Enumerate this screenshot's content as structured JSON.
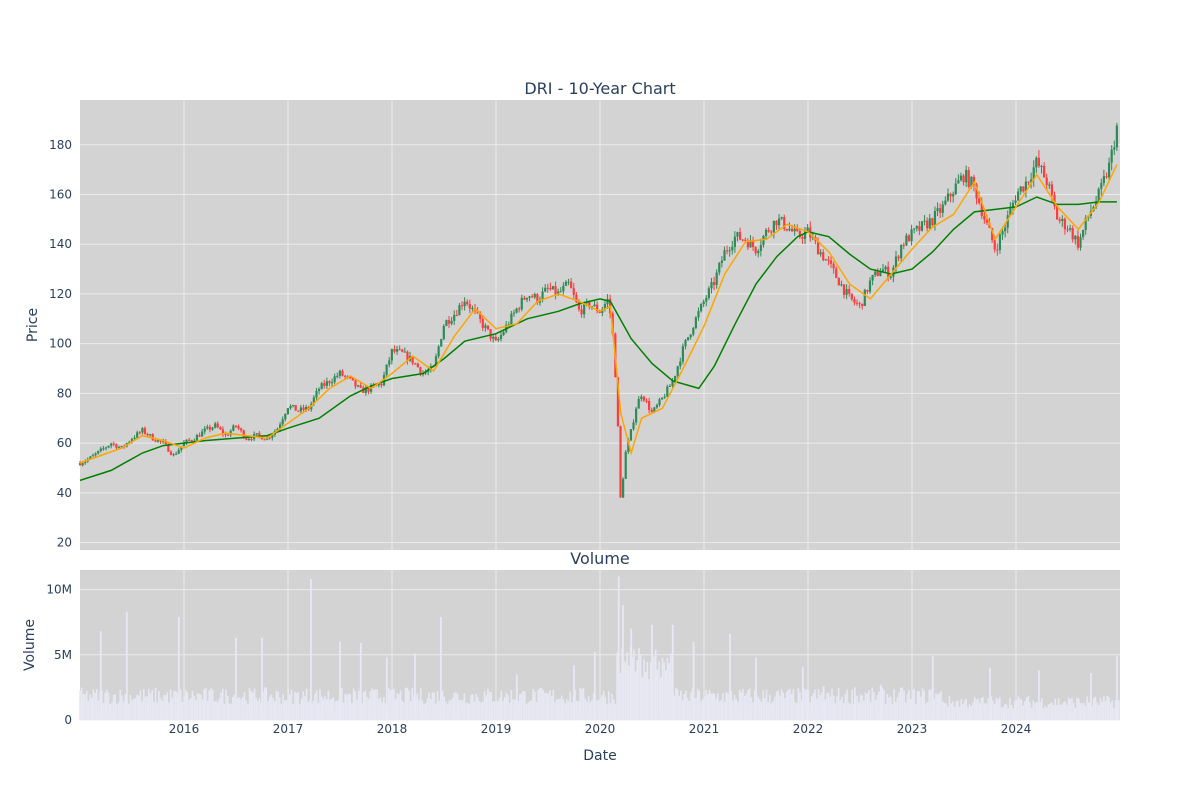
{
  "chart_data": [
    {
      "type": "candlestick",
      "title": "DRI - 10-Year Chart",
      "ylabel": "Price",
      "xlabel": "",
      "ylim": [
        17,
        198
      ],
      "xlim": [
        2015.0,
        2025.0
      ],
      "yticks": [
        "20",
        "40",
        "60",
        "80",
        "100",
        "120",
        "140",
        "160",
        "180"
      ],
      "grid": true,
      "colors": {
        "up": "#2e8b57",
        "down": "#ff3b3b",
        "plot_bg": "#d3d3d3",
        "ma_short": "#ffa500",
        "ma_long": "#008000"
      },
      "close_series": [
        [
          2015.0,
          52
        ],
        [
          2015.1,
          54
        ],
        [
          2015.2,
          57
        ],
        [
          2015.3,
          60
        ],
        [
          2015.4,
          58
        ],
        [
          2015.5,
          62
        ],
        [
          2015.6,
          65
        ],
        [
          2015.7,
          62
        ],
        [
          2015.8,
          60
        ],
        [
          2015.9,
          55
        ],
        [
          2016.0,
          60
        ],
        [
          2016.1,
          62
        ],
        [
          2016.2,
          65
        ],
        [
          2016.3,
          67
        ],
        [
          2016.4,
          63
        ],
        [
          2016.5,
          67
        ],
        [
          2016.6,
          62
        ],
        [
          2016.7,
          63
        ],
        [
          2016.8,
          62
        ],
        [
          2016.9,
          66
        ],
        [
          2017.0,
          75
        ],
        [
          2017.1,
          73
        ],
        [
          2017.2,
          74
        ],
        [
          2017.3,
          82
        ],
        [
          2017.4,
          85
        ],
        [
          2017.5,
          88
        ],
        [
          2017.6,
          85
        ],
        [
          2017.7,
          81
        ],
        [
          2017.8,
          82
        ],
        [
          2017.9,
          84
        ],
        [
          2018.0,
          97
        ],
        [
          2018.1,
          96
        ],
        [
          2018.2,
          93
        ],
        [
          2018.3,
          88
        ],
        [
          2018.4,
          90
        ],
        [
          2018.5,
          108
        ],
        [
          2018.6,
          112
        ],
        [
          2018.7,
          118
        ],
        [
          2018.8,
          112
        ],
        [
          2018.9,
          106
        ],
        [
          2019.0,
          100
        ],
        [
          2019.1,
          107
        ],
        [
          2019.2,
          114
        ],
        [
          2019.3,
          120
        ],
        [
          2019.4,
          118
        ],
        [
          2019.5,
          122
        ],
        [
          2019.6,
          120
        ],
        [
          2019.7,
          124
        ],
        [
          2019.8,
          113
        ],
        [
          2019.9,
          116
        ],
        [
          2020.0,
          113
        ],
        [
          2020.08,
          118
        ],
        [
          2020.12,
          105
        ],
        [
          2020.16,
          80
        ],
        [
          2020.2,
          35
        ],
        [
          2020.24,
          55
        ],
        [
          2020.3,
          65
        ],
        [
          2020.35,
          75
        ],
        [
          2020.4,
          80
        ],
        [
          2020.5,
          72
        ],
        [
          2020.6,
          78
        ],
        [
          2020.7,
          85
        ],
        [
          2020.8,
          98
        ],
        [
          2020.9,
          108
        ],
        [
          2021.0,
          117
        ],
        [
          2021.1,
          125
        ],
        [
          2021.2,
          137
        ],
        [
          2021.3,
          143
        ],
        [
          2021.4,
          142
        ],
        [
          2021.5,
          138
        ],
        [
          2021.6,
          145
        ],
        [
          2021.7,
          150
        ],
        [
          2021.8,
          147
        ],
        [
          2021.9,
          143
        ],
        [
          2022.0,
          145
        ],
        [
          2022.1,
          138
        ],
        [
          2022.2,
          132
        ],
        [
          2022.3,
          125
        ],
        [
          2022.4,
          118
        ],
        [
          2022.5,
          115
        ],
        [
          2022.6,
          125
        ],
        [
          2022.7,
          130
        ],
        [
          2022.8,
          128
        ],
        [
          2022.9,
          140
        ],
        [
          2023.0,
          144
        ],
        [
          2023.1,
          147
        ],
        [
          2023.2,
          150
        ],
        [
          2023.3,
          155
        ],
        [
          2023.4,
          162
        ],
        [
          2023.5,
          168
        ],
        [
          2023.6,
          163
        ],
        [
          2023.7,
          150
        ],
        [
          2023.8,
          138
        ],
        [
          2023.9,
          148
        ],
        [
          2024.0,
          160
        ],
        [
          2024.1,
          165
        ],
        [
          2024.2,
          173
        ],
        [
          2024.3,
          165
        ],
        [
          2024.4,
          150
        ],
        [
          2024.5,
          147
        ],
        [
          2024.6,
          140
        ],
        [
          2024.7,
          152
        ],
        [
          2024.8,
          160
        ],
        [
          2024.9,
          172
        ],
        [
          2024.97,
          187
        ]
      ],
      "ma_short": [
        [
          2015.0,
          52
        ],
        [
          2015.2,
          55
        ],
        [
          2015.4,
          58
        ],
        [
          2015.6,
          63
        ],
        [
          2015.8,
          61
        ],
        [
          2016.0,
          58
        ],
        [
          2016.2,
          62
        ],
        [
          2016.4,
          64
        ],
        [
          2016.6,
          63
        ],
        [
          2016.8,
          62
        ],
        [
          2017.0,
          68
        ],
        [
          2017.2,
          74
        ],
        [
          2017.4,
          82
        ],
        [
          2017.6,
          87
        ],
        [
          2017.8,
          82
        ],
        [
          2018.0,
          88
        ],
        [
          2018.2,
          95
        ],
        [
          2018.4,
          89
        ],
        [
          2018.6,
          103
        ],
        [
          2018.8,
          114
        ],
        [
          2019.0,
          106
        ],
        [
          2019.2,
          108
        ],
        [
          2019.4,
          117
        ],
        [
          2019.6,
          120
        ],
        [
          2019.8,
          117
        ],
        [
          2020.0,
          113
        ],
        [
          2020.1,
          115
        ],
        [
          2020.2,
          72
        ],
        [
          2020.3,
          56
        ],
        [
          2020.4,
          70
        ],
        [
          2020.6,
          74
        ],
        [
          2020.8,
          90
        ],
        [
          2021.0,
          107
        ],
        [
          2021.2,
          128
        ],
        [
          2021.4,
          141
        ],
        [
          2021.6,
          142
        ],
        [
          2021.8,
          148
        ],
        [
          2022.0,
          145
        ],
        [
          2022.2,
          137
        ],
        [
          2022.4,
          124
        ],
        [
          2022.6,
          118
        ],
        [
          2022.8,
          128
        ],
        [
          2023.0,
          138
        ],
        [
          2023.2,
          147
        ],
        [
          2023.4,
          152
        ],
        [
          2023.6,
          165
        ],
        [
          2023.8,
          142
        ],
        [
          2024.0,
          155
        ],
        [
          2024.2,
          168
        ],
        [
          2024.4,
          155
        ],
        [
          2024.6,
          146
        ],
        [
          2024.8,
          157
        ],
        [
          2024.97,
          172
        ]
      ],
      "ma_long": [
        [
          2015.0,
          45
        ],
        [
          2015.3,
          49
        ],
        [
          2015.6,
          56
        ],
        [
          2015.8,
          59
        ],
        [
          2016.0,
          60
        ],
        [
          2016.2,
          61
        ],
        [
          2016.5,
          62
        ],
        [
          2016.8,
          63
        ],
        [
          2017.0,
          66
        ],
        [
          2017.3,
          70
        ],
        [
          2017.6,
          79
        ],
        [
          2017.8,
          83
        ],
        [
          2018.0,
          86
        ],
        [
          2018.3,
          88
        ],
        [
          2018.5,
          94
        ],
        [
          2018.7,
          101
        ],
        [
          2019.0,
          104
        ],
        [
          2019.3,
          110
        ],
        [
          2019.6,
          113
        ],
        [
          2019.8,
          116
        ],
        [
          2020.0,
          118
        ],
        [
          2020.1,
          117
        ],
        [
          2020.3,
          102
        ],
        [
          2020.5,
          92
        ],
        [
          2020.7,
          85
        ],
        [
          2020.95,
          82
        ],
        [
          2021.1,
          91
        ],
        [
          2021.3,
          108
        ],
        [
          2021.5,
          124
        ],
        [
          2021.7,
          135
        ],
        [
          2021.9,
          143
        ],
        [
          2022.0,
          145
        ],
        [
          2022.2,
          143
        ],
        [
          2022.4,
          136
        ],
        [
          2022.6,
          130
        ],
        [
          2022.8,
          128
        ],
        [
          2023.0,
          130
        ],
        [
          2023.2,
          137
        ],
        [
          2023.4,
          146
        ],
        [
          2023.6,
          153
        ],
        [
          2023.8,
          154
        ],
        [
          2024.0,
          155
        ],
        [
          2024.2,
          159
        ],
        [
          2024.4,
          156
        ],
        [
          2024.6,
          156
        ],
        [
          2024.8,
          157
        ],
        [
          2024.97,
          157
        ]
      ]
    },
    {
      "type": "bar",
      "title": "Volume",
      "ylabel": "Volume",
      "xlabel": "Date",
      "ylim": [
        0,
        11500000
      ],
      "xlim": [
        2015.0,
        2025.0
      ],
      "yticks": [
        "0",
        "5M",
        "10M"
      ],
      "xticks": [
        "2016",
        "2017",
        "2018",
        "2019",
        "2020",
        "2021",
        "2022",
        "2023",
        "2024"
      ],
      "grid": true,
      "colors": {
        "bar": "#e8e8f4",
        "plot_bg": "#d3d3d3"
      },
      "spikes": [
        [
          2015.2,
          6800000
        ],
        [
          2015.45,
          8300000
        ],
        [
          2015.95,
          7900000
        ],
        [
          2016.5,
          6300000
        ],
        [
          2016.75,
          6300000
        ],
        [
          2017.22,
          10800000
        ],
        [
          2017.5,
          6000000
        ],
        [
          2017.7,
          5900000
        ],
        [
          2017.95,
          4800000
        ],
        [
          2018.22,
          5100000
        ],
        [
          2018.47,
          7900000
        ],
        [
          2019.2,
          3500000
        ],
        [
          2019.75,
          4200000
        ],
        [
          2019.95,
          5200000
        ],
        [
          2020.18,
          11000000
        ],
        [
          2020.22,
          8800000
        ],
        [
          2020.3,
          7000000
        ],
        [
          2020.5,
          7300000
        ],
        [
          2020.7,
          7300000
        ],
        [
          2020.9,
          6000000
        ],
        [
          2021.25,
          6600000
        ],
        [
          2021.5,
          4800000
        ],
        [
          2021.95,
          4100000
        ],
        [
          2022.15,
          2600000
        ],
        [
          2022.45,
          2500000
        ],
        [
          2022.7,
          2700000
        ],
        [
          2023.2,
          4900000
        ],
        [
          2023.75,
          4000000
        ],
        [
          2024.22,
          3800000
        ],
        [
          2024.72,
          3600000
        ],
        [
          2024.97,
          4900000
        ]
      ]
    }
  ]
}
